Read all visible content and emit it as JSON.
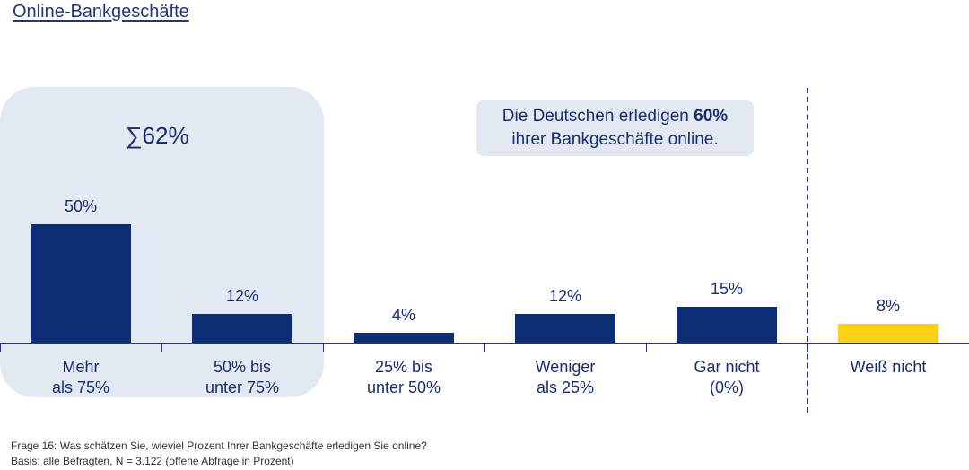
{
  "title": "Online-Bankgeschäfte",
  "sum_label": "∑62%",
  "callout": {
    "prefix": "Die Deutschen erledigen ",
    "bold": "60%",
    "line2": "ihrer Bankgeschäfte online."
  },
  "footnote": {
    "line1": "Frage 16: Was schätzen Sie, wieviel Prozent Ihrer Bankgeschäfte erledigen Sie online?",
    "line2": "Basis: alle Befragten, N = 3.122 (offene Abfrage in Prozent)"
  },
  "colors": {
    "bar": "#0d2d75",
    "bar_highlight": "#fbd21a",
    "accent_box": "#e3e9f2"
  },
  "chart_data": {
    "type": "bar",
    "categories": [
      "Mehr\nals 75%",
      "50% bis\nunter 75%",
      "25% bis\nunter 50%",
      "Weniger\nals 25%",
      "Gar nicht\n(0%)",
      "Weiß nicht"
    ],
    "values": [
      50,
      12,
      4,
      12,
      15,
      8
    ],
    "value_labels": [
      "50%",
      "12%",
      "4%",
      "12%",
      "15%",
      "8%"
    ],
    "unit": "%",
    "bar_colors": [
      "#0d2d75",
      "#0d2d75",
      "#0d2d75",
      "#0d2d75",
      "#0d2d75",
      "#fbd21a"
    ],
    "ylim": [
      0,
      50
    ]
  }
}
